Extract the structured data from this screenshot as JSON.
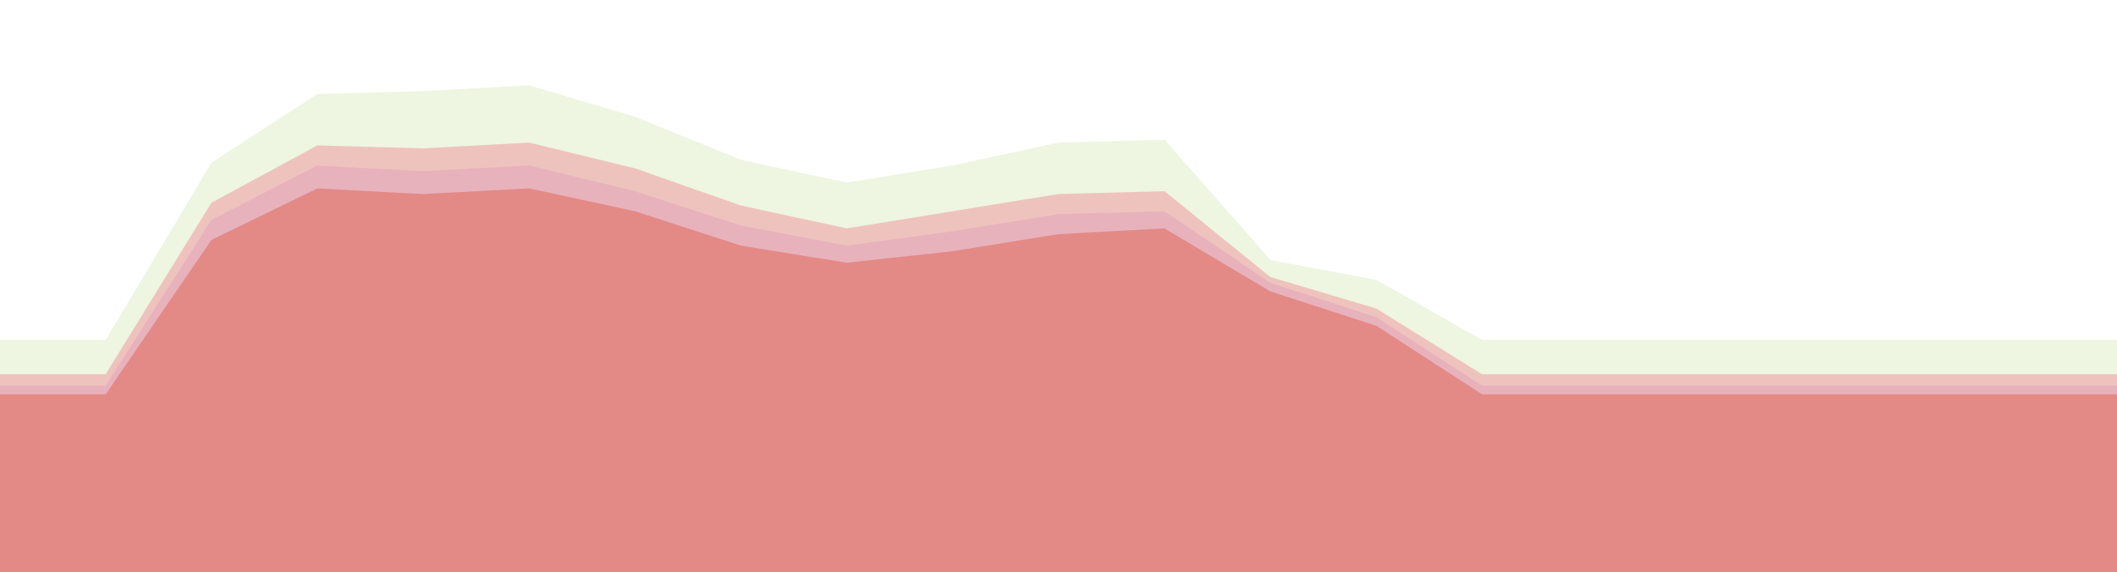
{
  "chart_data": {
    "type": "area",
    "stacked": true,
    "title": "",
    "xlabel": "",
    "ylabel": "",
    "axes_visible": false,
    "grid": false,
    "legend": "none",
    "x": [
      0,
      5,
      10,
      15,
      20,
      25,
      30,
      35,
      40,
      45,
      50,
      55,
      60,
      65,
      70,
      75,
      80,
      85,
      90,
      95,
      100
    ],
    "ylim": [
      0,
      100
    ],
    "series": [
      {
        "color": "#e38a86",
        "values": [
          31,
          31,
          58,
          67,
          66,
          67,
          63,
          57,
          54,
          56,
          59,
          60,
          49,
          43,
          31,
          31,
          31,
          31,
          31,
          31,
          31
        ]
      },
      {
        "color": "#e8b2bd",
        "values": [
          1.5,
          1.5,
          3.5,
          4,
          4,
          4,
          3.5,
          3.5,
          3,
          3.5,
          3.5,
          3,
          1.5,
          1.5,
          1.5,
          1.5,
          1.5,
          1.5,
          1.5,
          1.5,
          1.5
        ]
      },
      {
        "color": "#efc3bd",
        "values": [
          2,
          2,
          3,
          3.5,
          4,
          4,
          4,
          3.5,
          3,
          3.5,
          3.5,
          3.5,
          1,
          1.5,
          2,
          2,
          2,
          2,
          2,
          2,
          2
        ]
      },
      {
        "color": "#eef5e1",
        "values": [
          6,
          6,
          7,
          9,
          10,
          10,
          9,
          8,
          8,
          8,
          9,
          9,
          3,
          5,
          6,
          6,
          6,
          6,
          6,
          6,
          6
        ]
      }
    ]
  }
}
